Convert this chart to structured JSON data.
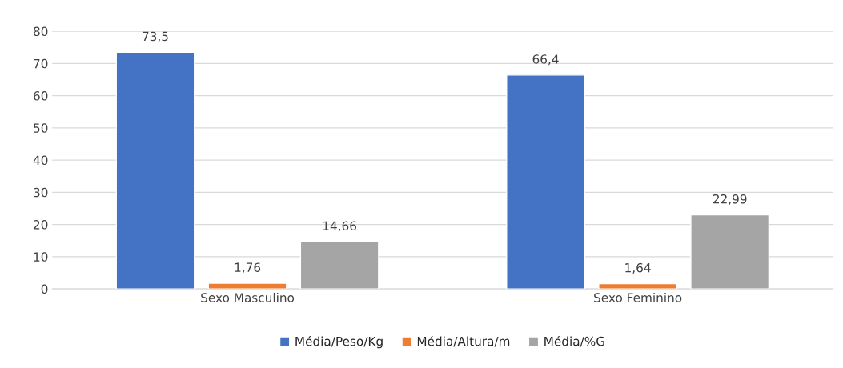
{
  "chart_data": {
    "type": "bar",
    "categories": [
      "Sexo Masculino",
      "Sexo Feminino"
    ],
    "series": [
      {
        "name": "Média/Peso/Kg",
        "color": "#4472c4",
        "values": [
          73.5,
          66.4
        ],
        "value_labels": [
          "73,5",
          "66,4"
        ]
      },
      {
        "name": "Média/Altura/m",
        "color": "#ed7d31",
        "values": [
          1.76,
          1.64
        ],
        "value_labels": [
          "1,76",
          "1,64"
        ]
      },
      {
        "name": "Média/%G",
        "color": "#a5a5a5",
        "values": [
          14.66,
          22.99
        ],
        "value_labels": [
          "14,66",
          "22,99"
        ]
      }
    ],
    "ylim": [
      0,
      80
    ],
    "yticks": [
      0,
      10,
      20,
      30,
      40,
      50,
      60,
      70,
      80
    ],
    "grid": "y",
    "legend": "bottom"
  }
}
